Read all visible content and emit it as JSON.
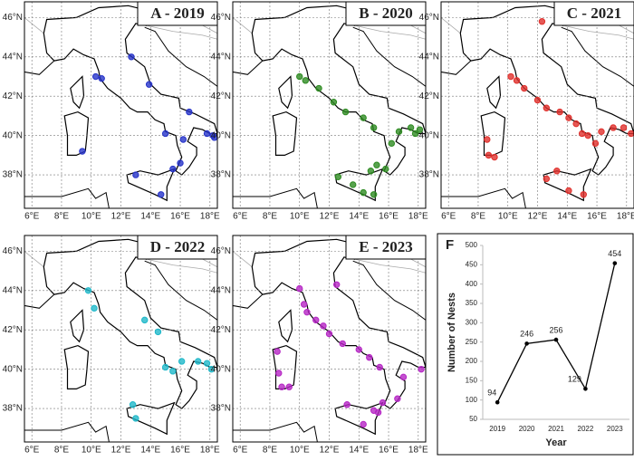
{
  "chart_data": [
    {
      "type": "map",
      "title": "A - 2019",
      "color": "#2633c9",
      "xlim": [
        5.5,
        18.5
      ],
      "ylim": [
        36.3,
        46.8
      ],
      "xticks": [
        {
          "value": 6,
          "label": "6°E"
        },
        {
          "value": 8,
          "label": "8°E"
        },
        {
          "value": 10,
          "label": "10°E"
        },
        {
          "value": 12,
          "label": "12°E"
        },
        {
          "value": 14,
          "label": "14°E"
        },
        {
          "value": 16,
          "label": "16°E"
        },
        {
          "value": 18,
          "label": "18°E"
        }
      ],
      "yticks": [
        {
          "value": 38,
          "label": "38°N"
        },
        {
          "value": 40,
          "label": "40°N"
        },
        {
          "value": 42,
          "label": "42°N"
        },
        {
          "value": 44,
          "label": "44°N"
        },
        {
          "value": 46,
          "label": "46°N"
        }
      ],
      "x": [
        10.3,
        10.7,
        12.7,
        13.9,
        16.6,
        15.0,
        16.2,
        17.8,
        18.2,
        18.3,
        16.0,
        15.5,
        13.0,
        14.7,
        9.4
      ],
      "y": [
        43.0,
        42.9,
        44.0,
        42.6,
        41.2,
        40.1,
        39.8,
        40.1,
        40.0,
        39.9,
        38.6,
        38.3,
        38.0,
        37.0,
        39.2
      ]
    },
    {
      "type": "map",
      "title": "B - 2020",
      "color": "#2e8b22",
      "xlim": [
        5.5,
        18.5
      ],
      "ylim": [
        36.3,
        46.8
      ],
      "xticks": [
        {
          "value": 6,
          "label": "6°E"
        },
        {
          "value": 8,
          "label": "8°E"
        },
        {
          "value": 10,
          "label": "10°E"
        },
        {
          "value": 12,
          "label": "12°E"
        },
        {
          "value": 14,
          "label": "14°E"
        },
        {
          "value": 16,
          "label": "16°E"
        },
        {
          "value": 18,
          "label": "18°E"
        }
      ],
      "yticks": [
        {
          "value": 38,
          "label": "38°N"
        },
        {
          "value": 40,
          "label": "40°N"
        },
        {
          "value": 42,
          "label": "42°N"
        },
        {
          "value": 44,
          "label": "44°N"
        },
        {
          "value": 46,
          "label": "46°N"
        }
      ],
      "x": [
        10.0,
        10.4,
        11.3,
        12.3,
        13.1,
        14.3,
        15.0,
        16.2,
        16.7,
        17.5,
        18.1,
        17.8,
        12.6,
        13.6,
        14.3,
        15.0,
        14.8,
        15.2,
        15.8
      ],
      "y": [
        43.0,
        42.8,
        42.4,
        41.7,
        41.2,
        40.9,
        40.4,
        39.6,
        40.2,
        40.4,
        40.3,
        40.1,
        37.9,
        37.5,
        37.1,
        37.0,
        38.2,
        38.5,
        38.3
      ]
    },
    {
      "type": "map",
      "title": "C - 2021",
      "color": "#e0302c",
      "xlim": [
        5.5,
        18.5
      ],
      "ylim": [
        36.3,
        46.8
      ],
      "xticks": [
        {
          "value": 6,
          "label": "6°E"
        },
        {
          "value": 8,
          "label": "8°E"
        },
        {
          "value": 10,
          "label": "10°E"
        },
        {
          "value": 12,
          "label": "12°E"
        },
        {
          "value": 14,
          "label": "14°E"
        },
        {
          "value": 16,
          "label": "16°E"
        },
        {
          "value": 18,
          "label": "18°E"
        }
      ],
      "yticks": [
        {
          "value": 38,
          "label": "38°N"
        },
        {
          "value": 40,
          "label": "40°N"
        },
        {
          "value": 42,
          "label": "42°N"
        },
        {
          "value": 44,
          "label": "44°N"
        },
        {
          "value": 46,
          "label": "46°N"
        }
      ],
      "x": [
        12.3,
        10.2,
        10.6,
        11.1,
        12.0,
        12.6,
        13.5,
        14.1,
        14.6,
        15.0,
        15.4,
        15.9,
        16.3,
        17.1,
        17.8,
        18.3,
        8.6,
        8.7,
        9.1,
        12.6,
        14.1,
        15.1,
        13.3
      ],
      "y": [
        45.8,
        43.0,
        42.8,
        42.4,
        41.8,
        41.4,
        41.2,
        40.9,
        40.6,
        40.1,
        40.0,
        39.6,
        40.2,
        40.4,
        40.4,
        40.1,
        39.8,
        39.0,
        38.9,
        37.8,
        37.2,
        37.0,
        38.2
      ]
    },
    {
      "type": "map",
      "title": "D - 2022",
      "color": "#1fb8c9",
      "xlim": [
        5.5,
        18.5
      ],
      "ylim": [
        36.3,
        46.8
      ],
      "xticks": [
        {
          "value": 6,
          "label": "6°E"
        },
        {
          "value": 8,
          "label": "8°E"
        },
        {
          "value": 10,
          "label": "10°E"
        },
        {
          "value": 12,
          "label": "12°E"
        },
        {
          "value": 14,
          "label": "14°E"
        },
        {
          "value": 16,
          "label": "16°E"
        },
        {
          "value": 18,
          "label": "18°E"
        }
      ],
      "yticks": [
        {
          "value": 38,
          "label": "38°N"
        },
        {
          "value": 40,
          "label": "40°N"
        },
        {
          "value": 42,
          "label": "42°N"
        },
        {
          "value": 44,
          "label": "44°N"
        },
        {
          "value": 46,
          "label": "46°N"
        }
      ],
      "x": [
        9.8,
        10.2,
        13.6,
        14.5,
        15.0,
        16.1,
        17.2,
        17.8,
        18.1,
        15.5,
        12.8,
        13.0
      ],
      "y": [
        44.0,
        43.1,
        42.5,
        41.9,
        40.1,
        40.4,
        40.4,
        40.3,
        40.0,
        39.9,
        38.2,
        37.5
      ]
    },
    {
      "type": "map",
      "title": "E - 2023",
      "color": "#b526c4",
      "xlim": [
        5.5,
        18.5
      ],
      "ylim": [
        36.3,
        46.8
      ],
      "xticks": [
        {
          "value": 6,
          "label": "6°E"
        },
        {
          "value": 8,
          "label": "8°E"
        },
        {
          "value": 10,
          "label": "10°E"
        },
        {
          "value": 12,
          "label": "12°E"
        },
        {
          "value": 14,
          "label": "14°E"
        },
        {
          "value": 16,
          "label": "16°E"
        },
        {
          "value": 18,
          "label": "18°E"
        }
      ],
      "yticks": [
        {
          "value": 38,
          "label": "38°N"
        },
        {
          "value": 40,
          "label": "40°N"
        },
        {
          "value": 42,
          "label": "42°N"
        },
        {
          "value": 44,
          "label": "44°N"
        },
        {
          "value": 46,
          "label": "46°N"
        }
      ],
      "x": [
        10.0,
        12.5,
        10.3,
        10.5,
        11.1,
        11.6,
        12.0,
        12.9,
        14.0,
        14.7,
        15.4,
        17.0,
        18.2,
        8.5,
        8.6,
        8.8,
        9.3,
        13.2,
        15.0,
        14.3,
        15.3,
        15.6,
        16.6
      ],
      "y": [
        44.1,
        44.3,
        43.3,
        42.9,
        42.5,
        42.2,
        41.8,
        41.3,
        41.0,
        40.6,
        40.1,
        39.6,
        40.0,
        40.9,
        39.8,
        39.1,
        39.1,
        38.2,
        37.9,
        37.2,
        37.8,
        38.3,
        38.5
      ]
    },
    {
      "type": "line",
      "title": "F",
      "color": "#000000",
      "categories": [
        "2019",
        "2020",
        "2021",
        "2022",
        "2023"
      ],
      "values": [
        94,
        246,
        256,
        129,
        454
      ],
      "ylim": [
        50,
        500
      ],
      "yticks": [
        50,
        100,
        150,
        200,
        250,
        300,
        350,
        400,
        450,
        500
      ],
      "xlabel": "Year",
      "ylabel": "Number of Nests"
    }
  ]
}
